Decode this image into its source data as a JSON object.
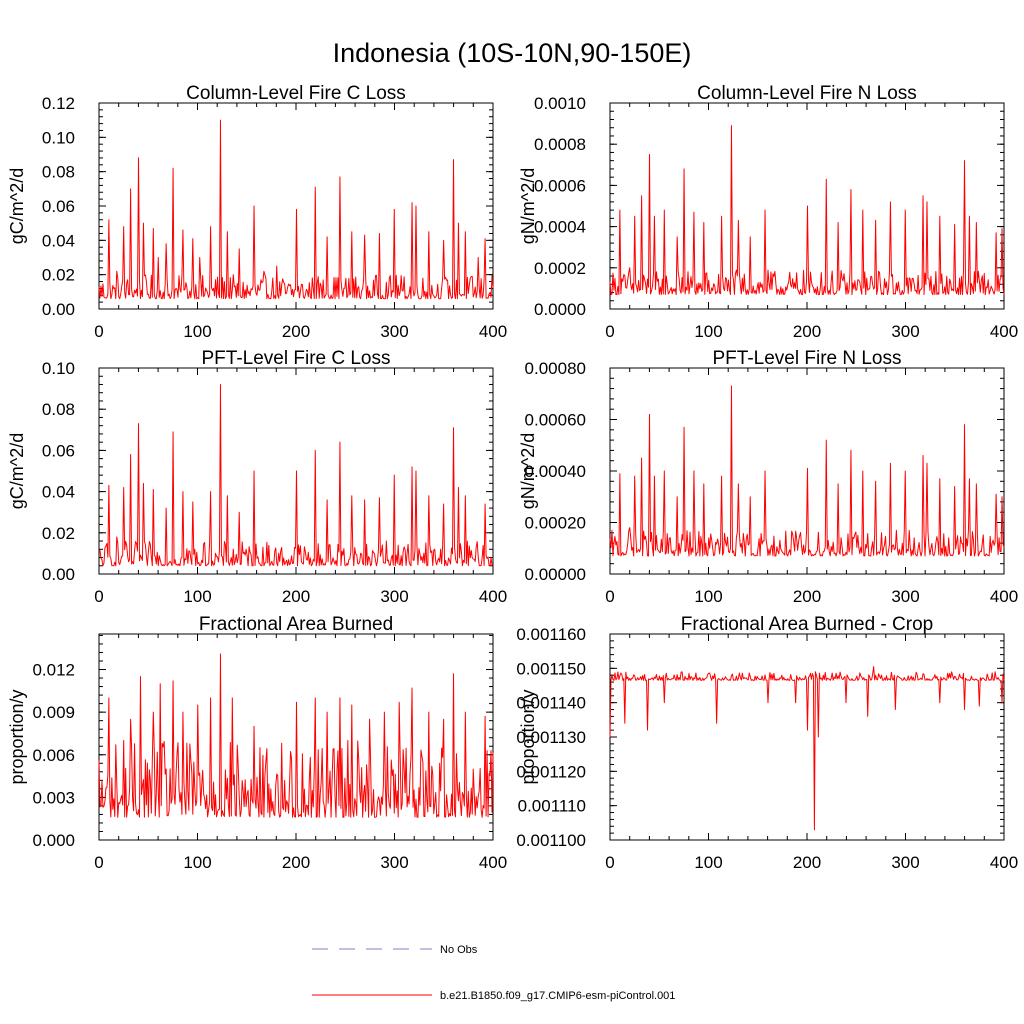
{
  "figure": {
    "title": "Indonesia (10S-10N,90-150E)"
  },
  "legend": {
    "items": [
      {
        "label": "No Obs",
        "style": "dashed",
        "color": "#7e86c6"
      },
      {
        "label": "b.e21.B1850.f09_g17.CMIP6-esm-piControl.001",
        "style": "solid",
        "color": "#ff0000"
      }
    ]
  },
  "chart_data": [
    {
      "type": "line",
      "title": "Column-Level Fire C Loss",
      "ylabel": "gC/m^2/d",
      "xlim": [
        0,
        400
      ],
      "ylim": [
        0,
        0.12
      ],
      "xticks": [
        "0",
        "100",
        "200",
        "300",
        "400"
      ],
      "yticks": [
        "0.00",
        "0.02",
        "0.04",
        "0.06",
        "0.08",
        "0.10",
        "0.12"
      ],
      "series": [
        {
          "name": "b.e21.B1850.f09_g17.CMIP6-esm-piControl.001",
          "color": "#ff0000",
          "x_start": 0,
          "x_end": 400,
          "points": 400,
          "base": 0.006,
          "noise": 0.014,
          "floor": 0.0,
          "peaks": [
            [
              10,
              0.052
            ],
            [
              18,
              0.022
            ],
            [
              25,
              0.048
            ],
            [
              32,
              0.07
            ],
            [
              40,
              0.088
            ],
            [
              45,
              0.05
            ],
            [
              55,
              0.047
            ],
            [
              60,
              0.03
            ],
            [
              68,
              0.038
            ],
            [
              75,
              0.082
            ],
            [
              85,
              0.046
            ],
            [
              95,
              0.041
            ],
            [
              102,
              0.03
            ],
            [
              113,
              0.048
            ],
            [
              123,
              0.11
            ],
            [
              130,
              0.045
            ],
            [
              142,
              0.035
            ],
            [
              157,
              0.06
            ],
            [
              167,
              0.022
            ],
            [
              180,
              0.025
            ],
            [
              200,
              0.058
            ],
            [
              220,
              0.071
            ],
            [
              232,
              0.042
            ],
            [
              245,
              0.077
            ],
            [
              257,
              0.045
            ],
            [
              270,
              0.043
            ],
            [
              285,
              0.044
            ],
            [
              300,
              0.058
            ],
            [
              318,
              0.062
            ],
            [
              322,
              0.06
            ],
            [
              335,
              0.045
            ],
            [
              350,
              0.04
            ],
            [
              360,
              0.087
            ],
            [
              365,
              0.05
            ],
            [
              372,
              0.045
            ],
            [
              385,
              0.03
            ],
            [
              392,
              0.041
            ]
          ]
        }
      ]
    },
    {
      "type": "line",
      "title": "Column-Level Fire N Loss",
      "ylabel": "gN/m^2/d",
      "xlim": [
        0,
        400
      ],
      "ylim": [
        0,
        0.001
      ],
      "xticks": [
        "0",
        "100",
        "200",
        "300",
        "400"
      ],
      "yticks": [
        "0.0000",
        "0.0002",
        "0.0004",
        "0.0006",
        "0.0008",
        "0.0010"
      ],
      "series": [
        {
          "name": "b.e21.B1850.f09_g17.CMIP6-esm-piControl.001",
          "color": "#ff0000",
          "x_start": 0,
          "x_end": 400,
          "points": 400,
          "base": 7e-05,
          "noise": 0.00012,
          "floor": 5e-05,
          "peaks": [
            [
              10,
              0.00048
            ],
            [
              20,
              0.0002
            ],
            [
              25,
              0.00045
            ],
            [
              32,
              0.00055
            ],
            [
              40,
              0.00075
            ],
            [
              45,
              0.00045
            ],
            [
              55,
              0.00048
            ],
            [
              68,
              0.00035
            ],
            [
              75,
              0.00068
            ],
            [
              85,
              0.00047
            ],
            [
              95,
              0.00042
            ],
            [
              113,
              0.00045
            ],
            [
              123,
              0.00089
            ],
            [
              130,
              0.00043
            ],
            [
              142,
              0.00035
            ],
            [
              157,
              0.00048
            ],
            [
              200,
              0.0005
            ],
            [
              220,
              0.00063
            ],
            [
              232,
              0.00042
            ],
            [
              245,
              0.00058
            ],
            [
              257,
              0.00048
            ],
            [
              270,
              0.00043
            ],
            [
              285,
              0.00052
            ],
            [
              300,
              0.00048
            ],
            [
              318,
              0.00055
            ],
            [
              322,
              0.00052
            ],
            [
              335,
              0.00045
            ],
            [
              350,
              0.00041
            ],
            [
              360,
              0.00072
            ],
            [
              365,
              0.00045
            ],
            [
              372,
              0.00042
            ],
            [
              392,
              0.00037
            ],
            [
              398,
              0.00039
            ]
          ]
        }
      ]
    },
    {
      "type": "line",
      "title": "PFT-Level Fire C Loss",
      "ylabel": "gC/m^2/d",
      "xlim": [
        0,
        400
      ],
      "ylim": [
        0,
        0.1
      ],
      "xticks": [
        "0",
        "100",
        "200",
        "300",
        "400"
      ],
      "yticks": [
        "0.00",
        "0.02",
        "0.04",
        "0.06",
        "0.08",
        "0.10"
      ],
      "series": [
        {
          "name": "b.e21.B1850.f09_g17.CMIP6-esm-piControl.001",
          "color": "#ff0000",
          "x_start": 0,
          "x_end": 400,
          "points": 400,
          "base": 0.004,
          "noise": 0.012,
          "floor": 0.0,
          "peaks": [
            [
              10,
              0.043
            ],
            [
              18,
              0.018
            ],
            [
              25,
              0.042
            ],
            [
              32,
              0.058
            ],
            [
              40,
              0.073
            ],
            [
              45,
              0.044
            ],
            [
              55,
              0.041
            ],
            [
              68,
              0.032
            ],
            [
              75,
              0.069
            ],
            [
              85,
              0.04
            ],
            [
              95,
              0.035
            ],
            [
              113,
              0.04
            ],
            [
              123,
              0.092
            ],
            [
              130,
              0.038
            ],
            [
              142,
              0.03
            ],
            [
              157,
              0.05
            ],
            [
              200,
              0.05
            ],
            [
              220,
              0.06
            ],
            [
              232,
              0.036
            ],
            [
              245,
              0.064
            ],
            [
              257,
              0.038
            ],
            [
              270,
              0.036
            ],
            [
              285,
              0.037
            ],
            [
              300,
              0.048
            ],
            [
              318,
              0.052
            ],
            [
              322,
              0.05
            ],
            [
              335,
              0.038
            ],
            [
              350,
              0.034
            ],
            [
              360,
              0.071
            ],
            [
              365,
              0.042
            ],
            [
              372,
              0.038
            ],
            [
              392,
              0.034
            ]
          ]
        }
      ]
    },
    {
      "type": "line",
      "title": "PFT-Level Fire N Loss",
      "ylabel": "gN/m^2/d",
      "xlim": [
        0,
        400
      ],
      "ylim": [
        0,
        0.0008
      ],
      "xticks": [
        "0",
        "100",
        "200",
        "300",
        "400"
      ],
      "yticks": [
        "0.00000",
        "0.00020",
        "0.00040",
        "0.00060",
        "0.00080"
      ],
      "series": [
        {
          "name": "b.e21.B1850.f09_g17.CMIP6-esm-piControl.001",
          "color": "#ff0000",
          "x_start": 0,
          "x_end": 400,
          "points": 400,
          "base": 7e-05,
          "noise": 0.0001,
          "floor": 5e-05,
          "peaks": [
            [
              10,
              0.00039
            ],
            [
              20,
              0.00018
            ],
            [
              25,
              0.00038
            ],
            [
              32,
              0.00045
            ],
            [
              40,
              0.00062
            ],
            [
              45,
              0.00038
            ],
            [
              55,
              0.0004
            ],
            [
              68,
              0.0003
            ],
            [
              75,
              0.00057
            ],
            [
              85,
              0.0004
            ],
            [
              95,
              0.00035
            ],
            [
              113,
              0.00038
            ],
            [
              123,
              0.00073
            ],
            [
              130,
              0.00035
            ],
            [
              142,
              0.0003
            ],
            [
              157,
              0.0004
            ],
            [
              200,
              0.00041
            ],
            [
              220,
              0.00052
            ],
            [
              232,
              0.00035
            ],
            [
              245,
              0.00048
            ],
            [
              257,
              0.0004
            ],
            [
              270,
              0.00036
            ],
            [
              285,
              0.00043
            ],
            [
              300,
              0.0004
            ],
            [
              318,
              0.00046
            ],
            [
              322,
              0.00043
            ],
            [
              335,
              0.00037
            ],
            [
              350,
              0.00034
            ],
            [
              360,
              0.00058
            ],
            [
              365,
              0.00037
            ],
            [
              372,
              0.00035
            ],
            [
              392,
              0.00031
            ],
            [
              398,
              0.0003
            ]
          ]
        }
      ]
    },
    {
      "type": "line",
      "title": "Fractional Area Burned",
      "ylabel": "proportion/y",
      "xlim": [
        0,
        400
      ],
      "ylim": [
        0,
        0.0145
      ],
      "xticks": [
        "0",
        "100",
        "200",
        "300",
        "400"
      ],
      "yticks": [
        "0.000",
        "0.003",
        "0.006",
        "0.009",
        "0.012"
      ],
      "series": [
        {
          "name": "b.e21.B1850.f09_g17.CMIP6-esm-piControl.001",
          "color": "#ff0000",
          "x_start": 0,
          "x_end": 400,
          "points": 400,
          "base": 0.0016,
          "noise": 0.0055,
          "floor": 0.0012,
          "peaks": [
            [
              10,
              0.01
            ],
            [
              25,
              0.007
            ],
            [
              32,
              0.0085
            ],
            [
              42,
              0.0115
            ],
            [
              55,
              0.009
            ],
            [
              62,
              0.011
            ],
            [
              75,
              0.0112
            ],
            [
              85,
              0.009
            ],
            [
              100,
              0.0095
            ],
            [
              113,
              0.01
            ],
            [
              123,
              0.0131
            ],
            [
              135,
              0.01
            ],
            [
              157,
              0.008
            ],
            [
              200,
              0.0097
            ],
            [
              220,
              0.01
            ],
            [
              232,
              0.009
            ],
            [
              245,
              0.01
            ],
            [
              257,
              0.0095
            ],
            [
              275,
              0.0085
            ],
            [
              290,
              0.009
            ],
            [
              305,
              0.0097
            ],
            [
              318,
              0.0107
            ],
            [
              335,
              0.009
            ],
            [
              350,
              0.0085
            ],
            [
              360,
              0.0117
            ],
            [
              372,
              0.009
            ],
            [
              392,
              0.0087
            ]
          ]
        }
      ]
    },
    {
      "type": "line",
      "title": "Fractional Area Burned - Crop",
      "ylabel": "proportion/y",
      "xlim": [
        0,
        400
      ],
      "ylim": [
        0.0011,
        0.00116
      ],
      "xticks": [
        "0",
        "100",
        "200",
        "300",
        "400"
      ],
      "yticks": [
        "0.001100",
        "0.001110",
        "0.001120",
        "0.001130",
        "0.001140",
        "0.001150",
        "0.001160"
      ],
      "series": [
        {
          "name": "b.e21.B1850.f09_g17.CMIP6-esm-piControl.001",
          "color": "#ff0000",
          "x_start": 0,
          "x_end": 400,
          "points": 400,
          "base": 0.0011465,
          "noise": 2.5e-06,
          "floor": 0.0011,
          "peaks": [
            [
              268,
              0.0011505
            ]
          ],
          "dips": [
            [
              0,
              0.00113
            ],
            [
              15,
              0.001134
            ],
            [
              38,
              0.001132
            ],
            [
              55,
              0.00114
            ],
            [
              108,
              0.001134
            ],
            [
              160,
              0.00114
            ],
            [
              188,
              0.00114
            ],
            [
              200,
              0.001132
            ],
            [
              208,
              0.001103
            ],
            [
              212,
              0.00113
            ],
            [
              240,
              0.00114
            ],
            [
              262,
              0.001136
            ],
            [
              290,
              0.001138
            ],
            [
              335,
              0.00114
            ],
            [
              360,
              0.001138
            ],
            [
              375,
              0.001139
            ],
            [
              398,
              0.00114
            ]
          ]
        }
      ]
    }
  ]
}
